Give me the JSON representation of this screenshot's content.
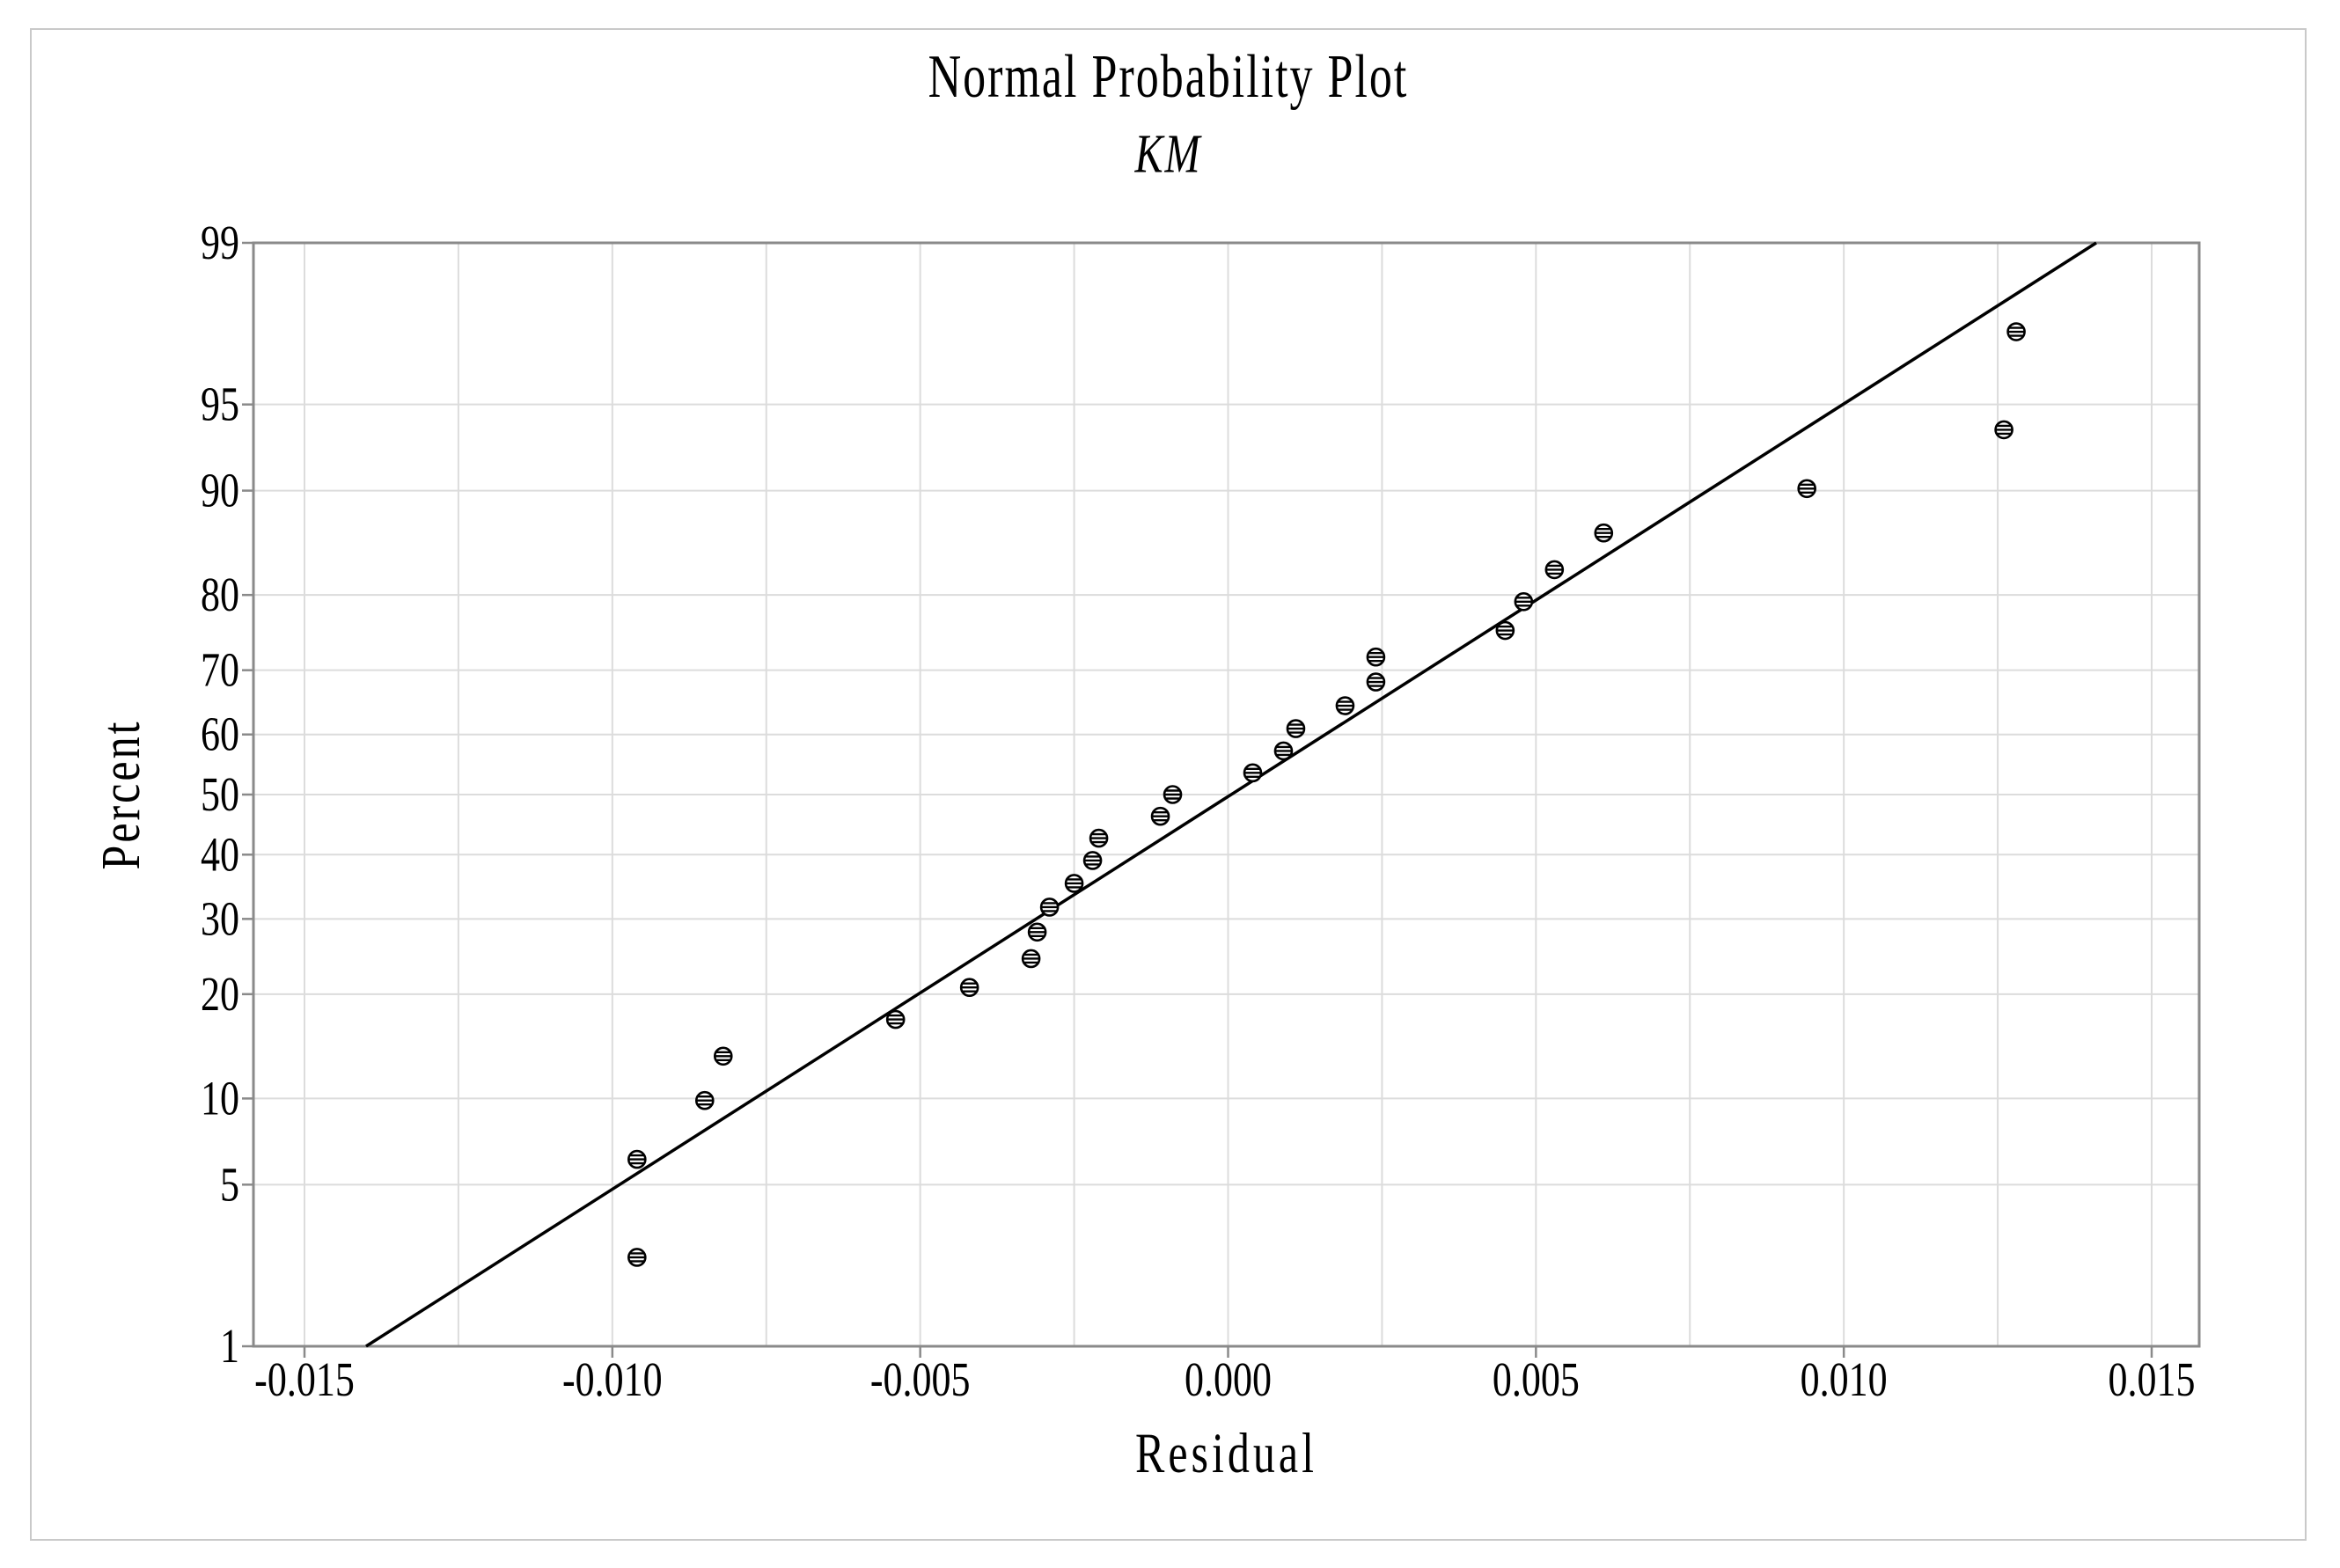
{
  "figure": {
    "title": "Normal Probability Plot",
    "subtitle": "KM",
    "x_axis_label": "Residual",
    "y_axis_label": "Percent"
  },
  "colors": {
    "background": "#ffffff",
    "figure_border": "#c9c9c9",
    "frame": "#8a8a8a",
    "tick": "#8a8a8a",
    "grid": "#dcdcdc",
    "fit_line": "#000000",
    "marker": "#000000",
    "text": "#000000"
  },
  "chart_data": {
    "type": "scatter",
    "title": "Normal Probability Plot",
    "subtitle": "KM",
    "xlabel": "Residual",
    "ylabel": "Percent",
    "y_scale": "normal-probability",
    "xlim": [
      -0.0158,
      0.0158
    ],
    "ylim_percent": [
      1,
      99
    ],
    "x_ticks": [
      -0.015,
      -0.01,
      -0.005,
      0,
      0.005,
      0.01,
      0.015
    ],
    "x_tick_labels": [
      "-0.015",
      "-0.010",
      "-0.005",
      "0.000",
      "0.005",
      "0.010",
      "0.015"
    ],
    "x_grid_step": 0.0025,
    "y_ticks": [
      1,
      5,
      10,
      20,
      30,
      40,
      50,
      60,
      70,
      80,
      90,
      95,
      99
    ],
    "y_tick_labels": [
      "1",
      "5",
      "10",
      "20",
      "30",
      "40",
      "50",
      "60",
      "70",
      "80",
      "90",
      "95",
      "99"
    ],
    "grid": true,
    "legend": "none",
    "marker_style": "circle-horizontal-stripes",
    "points": [
      {
        "residual": -0.0096,
        "percent": 2.55
      },
      {
        "residual": -0.0096,
        "percent": 6.2
      },
      {
        "residual": -0.0085,
        "percent": 9.85
      },
      {
        "residual": -0.0082,
        "percent": 13.5
      },
      {
        "residual": -0.0054,
        "percent": 17.15
      },
      {
        "residual": -0.0042,
        "percent": 20.8
      },
      {
        "residual": -0.0032,
        "percent": 24.45
      },
      {
        "residual": -0.0031,
        "percent": 28.1
      },
      {
        "residual": -0.0029,
        "percent": 31.75
      },
      {
        "residual": -0.0025,
        "percent": 35.4
      },
      {
        "residual": -0.0022,
        "percent": 39.05
      },
      {
        "residual": -0.0021,
        "percent": 42.7
      },
      {
        "residual": -0.0011,
        "percent": 46.35
      },
      {
        "residual": -0.0009,
        "percent": 50.0
      },
      {
        "residual": 0.0004,
        "percent": 53.65
      },
      {
        "residual": 0.0009,
        "percent": 57.3
      },
      {
        "residual": 0.0011,
        "percent": 60.95
      },
      {
        "residual": 0.0019,
        "percent": 64.6
      },
      {
        "residual": 0.0024,
        "percent": 68.25
      },
      {
        "residual": 0.0024,
        "percent": 71.9
      },
      {
        "residual": 0.0045,
        "percent": 75.55
      },
      {
        "residual": 0.0048,
        "percent": 79.2
      },
      {
        "residual": 0.0053,
        "percent": 82.85
      },
      {
        "residual": 0.0061,
        "percent": 86.5
      },
      {
        "residual": 0.0094,
        "percent": 90.15
      },
      {
        "residual": 0.0126,
        "percent": 93.8
      },
      {
        "residual": 0.0128,
        "percent": 97.45
      }
    ],
    "fit_line": {
      "from": {
        "residual": -0.014,
        "percent": 1
      },
      "to": {
        "residual": 0.0141,
        "percent": 99
      }
    }
  }
}
